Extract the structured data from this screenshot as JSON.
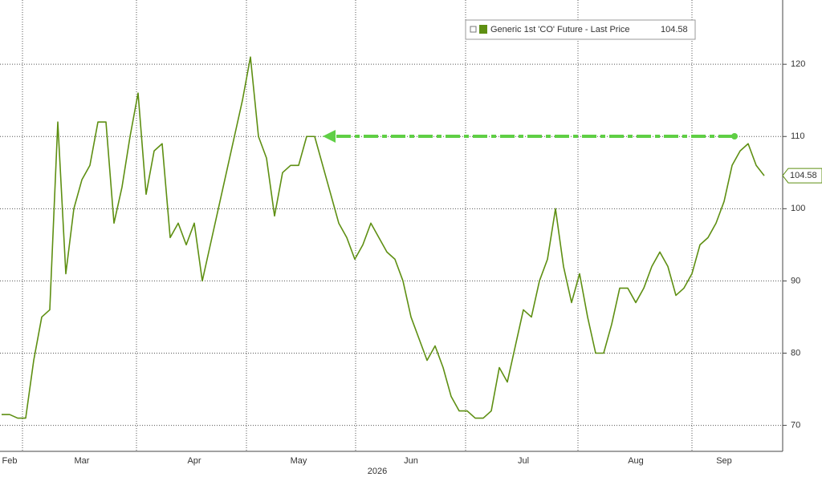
{
  "chart_data": {
    "type": "line",
    "categories": [
      null,
      "Feb",
      null,
      null,
      null,
      null,
      null,
      null,
      null,
      null,
      "Mar",
      null,
      null,
      null,
      null,
      null,
      null,
      null,
      null,
      null,
      null,
      null,
      null,
      null,
      "Apr",
      null,
      null,
      null,
      null,
      null,
      null,
      null,
      null,
      null,
      null,
      null,
      null,
      "May",
      null,
      null,
      null,
      null,
      null,
      null,
      null,
      null,
      null,
      null,
      null,
      null,
      null,
      "Jun",
      null,
      null,
      null,
      null,
      null,
      null,
      null,
      null,
      null,
      null,
      null,
      null,
      null,
      "Jul",
      null,
      null,
      null,
      null,
      null,
      null,
      null,
      null,
      null,
      null,
      null,
      null,
      null,
      "Aug",
      null,
      null,
      null,
      null,
      null,
      null,
      null,
      null,
      null,
      null,
      "Sep",
      null,
      null,
      null,
      null,
      null
    ],
    "x_axis_label": "2026",
    "series": [
      {
        "name": "Generic 1st 'CO' Future - Last Price",
        "color": "#5e8f12",
        "values": [
          71.5,
          71.5,
          71,
          71,
          79,
          85,
          86,
          112,
          91,
          100,
          104,
          106,
          112,
          112,
          98,
          103,
          110,
          116,
          102,
          108,
          109,
          96,
          98,
          95,
          98,
          90,
          95,
          100,
          105,
          110,
          115,
          121,
          110,
          107,
          99,
          105,
          106,
          106,
          110,
          110,
          106,
          102,
          98,
          96,
          93,
          95,
          98,
          96,
          94,
          93,
          90,
          85,
          82,
          79,
          81,
          78,
          74,
          72,
          72,
          71,
          71,
          72,
          78,
          76,
          81,
          86,
          85,
          90,
          93,
          100,
          92,
          87,
          91,
          85,
          80,
          80,
          84,
          89,
          89,
          87,
          89,
          92,
          94,
          92,
          88,
          89,
          91,
          95,
          96,
          98,
          101,
          106,
          108,
          109,
          106,
          104.58
        ]
      }
    ],
    "ylim": [
      66.4,
      128.9
    ],
    "yticks": [
      70,
      80,
      90,
      100,
      110,
      120
    ],
    "grid": true,
    "y_axis_side": "right"
  }
}
